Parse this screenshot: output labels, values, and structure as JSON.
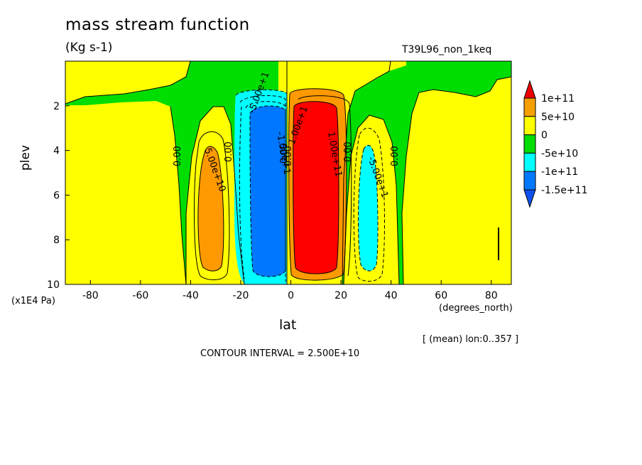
{
  "chart_data": {
    "type": "heatmap",
    "title": "mass stream function",
    "units": "(Kg s-1)",
    "run_label": "T39L96_non_1keq",
    "xlabel": "lat",
    "xunit": "(degrees_north)",
    "ylabel": "plev",
    "yunit": "(x1E4 Pa)",
    "xlim": [
      -90,
      88
    ],
    "ylim": [
      10,
      0
    ],
    "xticks": [
      "-80",
      "-60",
      "-40",
      "-20",
      "0",
      "20",
      "40",
      "60",
      "80"
    ],
    "xtick_values": [
      -80,
      -60,
      -40,
      -20,
      0,
      20,
      40,
      60,
      80
    ],
    "yticks": [
      "2",
      "4",
      "6",
      "8",
      "10"
    ],
    "ytick_values": [
      2,
      4,
      6,
      8,
      10
    ],
    "legend": {
      "placement": "right",
      "levels": [
        "1e+11",
        "5e+10",
        "0",
        "-5e+10",
        "-1e+11",
        "-1.5e+11"
      ],
      "colors": [
        "#ee0000",
        "#f5a000",
        "#ffff00",
        "#00dd00",
        "#00ffff",
        "#0077ff",
        "#1050ee"
      ]
    },
    "contour_labels": [
      "0.00",
      "0.00",
      "0.00",
      "0.00",
      "0.00",
      "0.00",
      "5.00e+10",
      "-5.00e+1",
      "-5.00e+1",
      "1.00e+1",
      "-1.50e+1",
      "1.00e+11"
    ],
    "annotation_mean": "[ (mean) lon:0..357 ]",
    "contour_interval": "CONTOUR INTERVAL = 2.500E+10",
    "colors": {
      "red": "#ff0000",
      "orange": "#ff9900",
      "yellow": "#ffff00",
      "green": "#00dd00",
      "cyan": "#00ffff",
      "blue": "#0077ff"
    }
  }
}
